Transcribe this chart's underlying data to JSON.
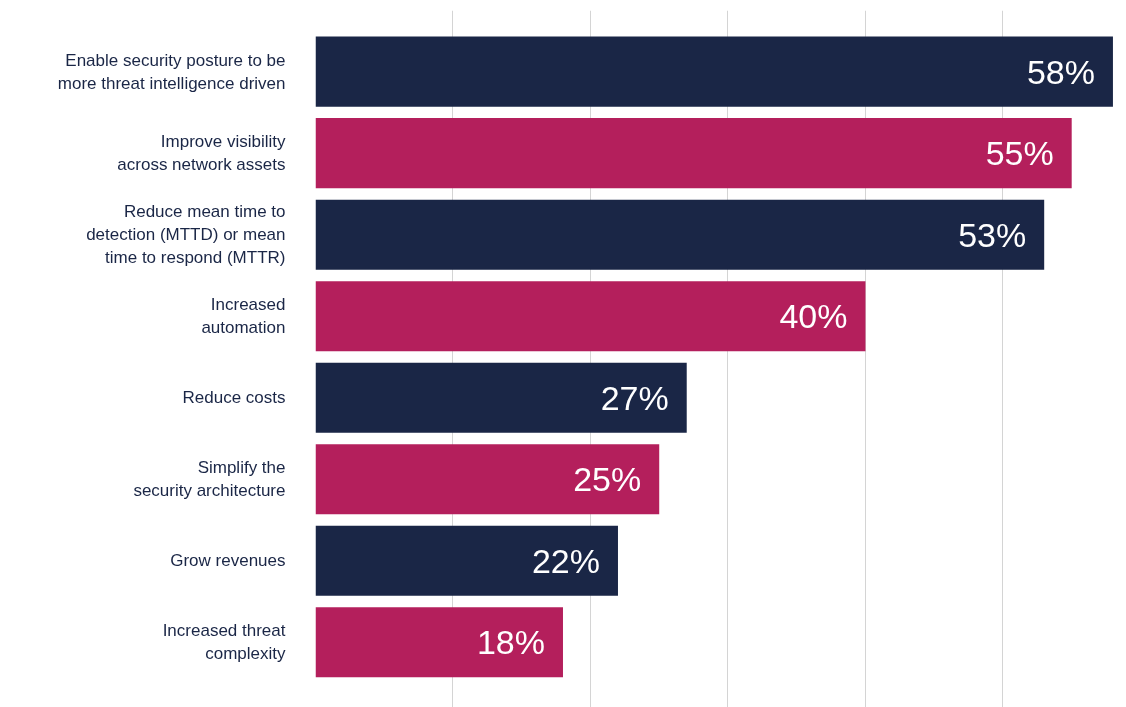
{
  "chart_data": {
    "type": "bar",
    "orientation": "horizontal",
    "categories": [
      "Enable security posture to be\nmore threat intelligence driven",
      "Improve visibility\nacross network assets",
      "Reduce mean time to\ndetection (MTTD) or mean\ntime to respond (MTTR)",
      "Increased\nautomation",
      "Reduce costs",
      "Simplify the\nsecurity architecture",
      "Grow revenues",
      "Increased threat\ncomplexity"
    ],
    "values": [
      58,
      55,
      53,
      40,
      27,
      25,
      22,
      18
    ],
    "value_labels": [
      "58%",
      "55%",
      "53%",
      "40%",
      "27%",
      "25%",
      "22%",
      "18%"
    ],
    "colors": [
      "#1a2646",
      "#b41f5c",
      "#1a2646",
      "#b41f5c",
      "#1a2646",
      "#b41f5c",
      "#1a2646",
      "#b41f5c"
    ],
    "tick_labels": "y",
    "grid": "x"
  }
}
